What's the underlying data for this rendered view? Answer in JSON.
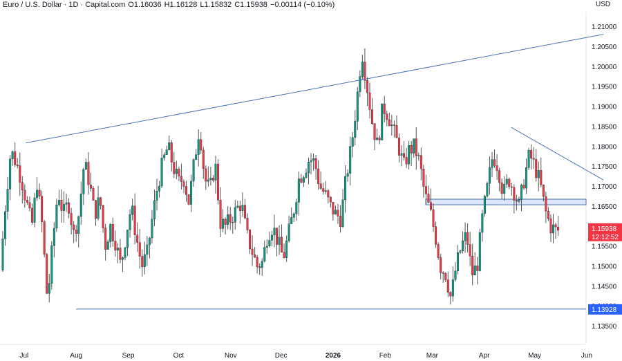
{
  "header": {
    "instrument": "Euro / U.S. Dollar · 1D · Capital.com",
    "open": "O1.16036",
    "high": "H1.16128",
    "low": "L1.15832",
    "close": "C1.15938",
    "change": "−0.00114 (−0.10%)"
  },
  "currency_label": "USD",
  "chart_data": {
    "type": "candlestick",
    "y_ticks": [
      "1.21000",
      "1.20500",
      "1.20000",
      "1.19500",
      "1.19000",
      "1.18500",
      "1.18000",
      "1.17500",
      "1.17000",
      "1.16500",
      "1.16000",
      "1.15500",
      "1.15000",
      "1.14500",
      "1.14000",
      "1.13500"
    ],
    "ylim": [
      1.1325,
      1.2115
    ],
    "x_ticks": [
      {
        "label": "Jul",
        "bold": false
      },
      {
        "label": "Aug",
        "bold": false
      },
      {
        "label": "Sep",
        "bold": false
      },
      {
        "label": "Oct",
        "bold": false
      },
      {
        "label": "Nov",
        "bold": false
      },
      {
        "label": "Dec",
        "bold": false
      },
      {
        "label": "2026",
        "bold": true
      },
      {
        "label": "Feb",
        "bold": false
      },
      {
        "label": "Mar",
        "bold": false
      },
      {
        "label": "Apr",
        "bold": false
      },
      {
        "label": "May",
        "bold": false
      },
      {
        "label": "Jun",
        "bold": false
      }
    ],
    "last_price": {
      "value": "1.15938",
      "countdown": "12:12:52",
      "color": "#f23645"
    },
    "support_level": {
      "value": "1.13928",
      "color": "#2962ff"
    },
    "colors": {
      "up": "#089981",
      "down": "#f23645",
      "line": "#4a6fb5",
      "zone": "#dde7fb"
    },
    "price_path": [
      1.149,
      1.166,
      1.179,
      1.176,
      1.172,
      1.166,
      1.16,
      1.171,
      1.16,
      1.141,
      1.156,
      1.169,
      1.163,
      1.166,
      1.158,
      1.163,
      1.176,
      1.171,
      1.163,
      1.167,
      1.155,
      1.16,
      1.156,
      1.15,
      1.158,
      1.165,
      1.157,
      1.15,
      1.153,
      1.162,
      1.17,
      1.176,
      1.18,
      1.175,
      1.171,
      1.172,
      1.166,
      1.176,
      1.185,
      1.172,
      1.169,
      1.176,
      1.161,
      1.16,
      1.162,
      1.164,
      1.166,
      1.158,
      1.154,
      1.15,
      1.151,
      1.158,
      1.16,
      1.156,
      1.152,
      1.158,
      1.164,
      1.172,
      1.174,
      1.177,
      1.176,
      1.17,
      1.168,
      1.165,
      1.163,
      1.162,
      1.172,
      1.18,
      1.191,
      1.204,
      1.195,
      1.186,
      1.18,
      1.19,
      1.188,
      1.184,
      1.18,
      1.175,
      1.179,
      1.18,
      1.176,
      1.168,
      1.164,
      1.158,
      1.15,
      1.148,
      1.142,
      1.15,
      1.155,
      1.158,
      1.148,
      1.15,
      1.162,
      1.17,
      1.178,
      1.175,
      1.168,
      1.172,
      1.169,
      1.165,
      1.172,
      1.178,
      1.175,
      1.171,
      1.164,
      1.16,
      1.159
    ],
    "trend_lines": [
      {
        "p1": [
          "2025-07-02",
          1.1809
        ],
        "p2": [
          "2026-06-11",
          1.2081
        ]
      },
      {
        "p1": [
          "2026-04-17",
          1.1848
        ],
        "p2": [
          "2026-06-11",
          1.1716
        ]
      }
    ],
    "resistance_zone": [
      1.1654,
      1.1668
    ],
    "support_line_start": "2025-08-01"
  }
}
